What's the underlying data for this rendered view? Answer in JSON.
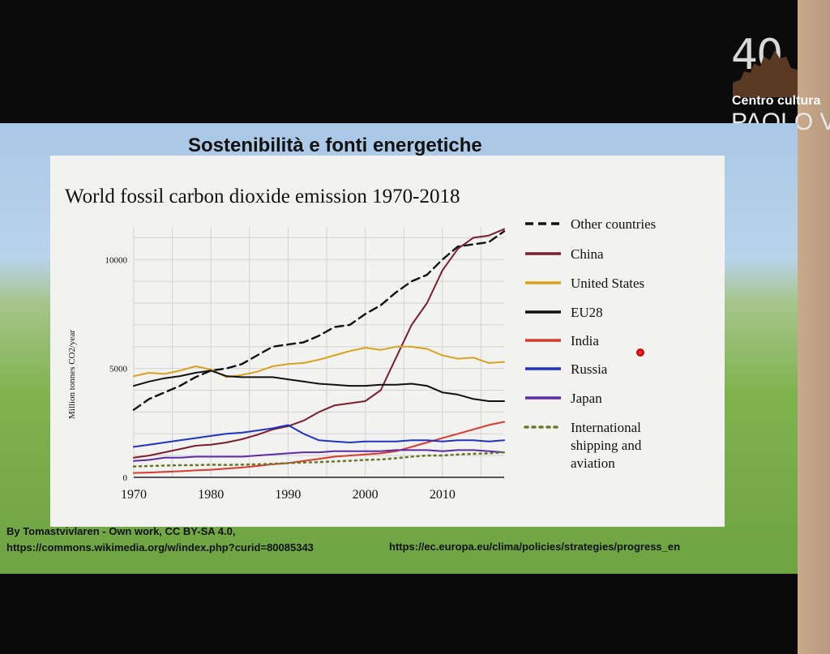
{
  "logo": {
    "number": "40",
    "line1": "Centro cultura",
    "line2": "PAOLO V"
  },
  "slide": {
    "title": "Sostenibilità e fonti energetiche",
    "credit_line1": "By Tomastvivlaren - Own work, CC BY-SA 4.0,",
    "credit_line2": "https://commons.wikimedia.org/w/index.php?curid=80085343",
    "credit_link_right": "https://ec.europa.eu/clima/policies/strategies/progress_en"
  },
  "chart_data": {
    "type": "line",
    "title": "World fossil carbon dioxide emission 1970-2018",
    "xlabel": "",
    "ylabel": "Million tonnes CO2/year",
    "xlim": [
      1970,
      2018
    ],
    "ylim": [
      0,
      11500
    ],
    "xticks": [
      1970,
      1980,
      1990,
      2000,
      2010
    ],
    "yticks": [
      0,
      5000,
      10000
    ],
    "grid": true,
    "legend_position": "right",
    "x": [
      1970,
      1972,
      1974,
      1976,
      1978,
      1980,
      1982,
      1984,
      1986,
      1988,
      1990,
      1992,
      1994,
      1996,
      1998,
      2000,
      2002,
      2004,
      2006,
      2008,
      2010,
      2012,
      2014,
      2016,
      2018
    ],
    "series": [
      {
        "name": "Other countries",
        "color": "#111111",
        "style": "dashed",
        "values": [
          3100,
          3600,
          3900,
          4200,
          4600,
          4900,
          5000,
          5200,
          5600,
          6000,
          6100,
          6200,
          6500,
          6900,
          7000,
          7500,
          7900,
          8500,
          9000,
          9300,
          10000,
          10600,
          10700,
          10800,
          11300
        ]
      },
      {
        "name": "China",
        "color": "#7a1f2b",
        "style": "solid",
        "values": [
          900,
          1000,
          1150,
          1300,
          1450,
          1500,
          1600,
          1750,
          1950,
          2200,
          2350,
          2600,
          3000,
          3300,
          3400,
          3500,
          4000,
          5500,
          7000,
          8000,
          9500,
          10500,
          11000,
          11100,
          11400
        ]
      },
      {
        "name": "United States",
        "color": "#d9a21c",
        "style": "solid",
        "values": [
          4650,
          4800,
          4750,
          4900,
          5100,
          4950,
          4600,
          4700,
          4850,
          5100,
          5200,
          5250,
          5400,
          5600,
          5800,
          5950,
          5850,
          6000,
          6000,
          5900,
          5600,
          5450,
          5500,
          5250,
          5300
        ]
      },
      {
        "name": "EU28",
        "color": "#111111",
        "style": "solid",
        "values": [
          4200,
          4400,
          4550,
          4650,
          4800,
          4900,
          4650,
          4600,
          4600,
          4600,
          4500,
          4400,
          4300,
          4250,
          4200,
          4200,
          4250,
          4250,
          4300,
          4200,
          3900,
          3800,
          3600,
          3500,
          3500
        ]
      },
      {
        "name": "India",
        "color": "#d93a2b",
        "style": "solid",
        "values": [
          200,
          220,
          250,
          280,
          320,
          350,
          400,
          450,
          520,
          600,
          650,
          750,
          850,
          950,
          1000,
          1050,
          1100,
          1200,
          1400,
          1600,
          1800,
          2000,
          2200,
          2400,
          2550
        ]
      },
      {
        "name": "Russia",
        "color": "#1f33c8",
        "style": "solid",
        "values": [
          1400,
          1500,
          1600,
          1700,
          1800,
          1900,
          2000,
          2050,
          2150,
          2250,
          2400,
          2000,
          1700,
          1650,
          1600,
          1650,
          1650,
          1650,
          1700,
          1700,
          1650,
          1700,
          1700,
          1650,
          1700
        ]
      },
      {
        "name": "Japan",
        "color": "#5b2ca6",
        "style": "solid",
        "values": [
          750,
          800,
          900,
          900,
          950,
          950,
          950,
          950,
          1000,
          1050,
          1100,
          1150,
          1150,
          1200,
          1200,
          1200,
          1200,
          1250,
          1250,
          1250,
          1200,
          1250,
          1250,
          1200,
          1150
        ]
      },
      {
        "name": "International shipping and aviation",
        "color": "#6b7a2a",
        "style": "dotted",
        "values": [
          500,
          520,
          540,
          560,
          560,
          580,
          570,
          580,
          600,
          620,
          650,
          680,
          700,
          730,
          760,
          800,
          820,
          880,
          950,
          1000,
          1000,
          1050,
          1080,
          1100,
          1150
        ]
      }
    ]
  }
}
